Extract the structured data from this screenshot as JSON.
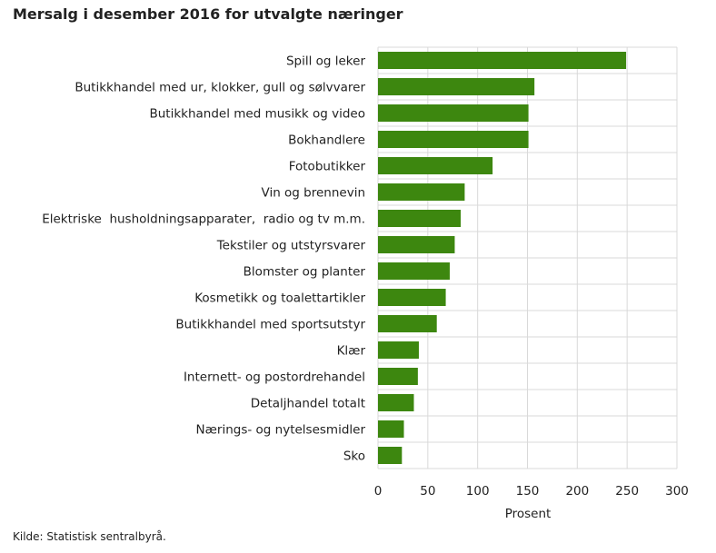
{
  "chart_data": {
    "type": "bar",
    "orientation": "horizontal",
    "title": "Mersalg i desember 2016 for utvalgte næringer",
    "xlabel": "Prosent",
    "ylabel": "",
    "categories": [
      "Spill og leker",
      "Butikkhandel med ur, klokker, gull og sølvvarer",
      "Butikkhandel med musikk og video",
      "Bokhandlere",
      "Fotobutikker",
      "Vin og brennevin",
      "Elektriske  husholdningsapparater,  radio og tv m.m.",
      "Tekstiler og utstyrsvarer",
      "Blomster og planter",
      "Kosmetikk og toalettartikler",
      "Butikkhandel med sportsutstyr",
      "Klær",
      "Internett- og postordrehandel",
      "Detaljhandel totalt",
      "Nærings- og nytelsesmidler",
      "Sko"
    ],
    "values": [
      249,
      157,
      151,
      151,
      115,
      87,
      83,
      77,
      72,
      68,
      59,
      41,
      40,
      36,
      26,
      24
    ],
    "xlim": [
      0,
      300
    ],
    "xticks": [
      0,
      50,
      100,
      150,
      200,
      250,
      300
    ],
    "grid": true,
    "bar_color": "#3d870f"
  },
  "source": "Kilde: Statistisk sentralbyrå."
}
